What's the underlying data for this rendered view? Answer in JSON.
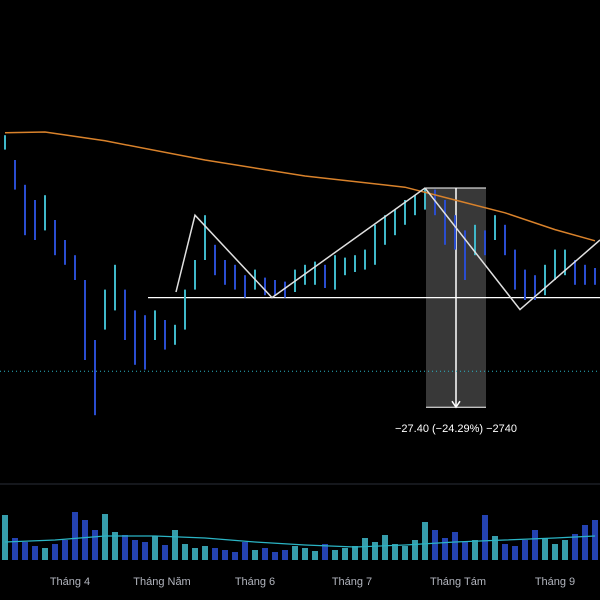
{
  "chart_data": {
    "type": "ohlc",
    "x": [
      0,
      1,
      2,
      3,
      4,
      5,
      6,
      7,
      8,
      9,
      10,
      11,
      12,
      13,
      14,
      15,
      16,
      17,
      18,
      19,
      20,
      21,
      22,
      23,
      24,
      25,
      26,
      27,
      28,
      29,
      30,
      31,
      32,
      33,
      34,
      35,
      36,
      37,
      38,
      39,
      40,
      41,
      42,
      43,
      44,
      45,
      46,
      47,
      48,
      49,
      50,
      51,
      52,
      53,
      54,
      55,
      56,
      57,
      58,
      59
    ],
    "high": [
      119.4,
      116.3,
      113.2,
      111.3,
      111.9,
      108.8,
      106.3,
      104.4,
      101.3,
      93.8,
      100.1,
      103.2,
      100.1,
      97.5,
      96.9,
      97.5,
      96.3,
      95.7,
      100.1,
      103.8,
      109.4,
      105.7,
      103.8,
      103.2,
      101.9,
      102.6,
      101.6,
      101.3,
      101.1,
      102.6,
      103.2,
      103.6,
      103.2,
      104.4,
      104.1,
      104.4,
      105.1,
      108.2,
      109.4,
      110.1,
      111.3,
      111.9,
      112.8,
      112.6,
      111.3,
      109.4,
      107.5,
      108.2,
      107.5,
      109.4,
      108.2,
      105.1,
      102.6,
      101.9,
      103.2,
      105.1,
      105.1,
      103.8,
      103.2,
      102.8
    ],
    "low": [
      117.6,
      112.6,
      106.9,
      106.3,
      107.5,
      104.4,
      103.2,
      101.3,
      91.3,
      84.4,
      95.1,
      97.5,
      93.8,
      90.7,
      90.1,
      93.8,
      92.6,
      93.2,
      95.1,
      100.1,
      103.8,
      101.9,
      100.7,
      100.1,
      99.1,
      100.1,
      99.4,
      99.4,
      99.1,
      99.8,
      100.7,
      100.7,
      100.3,
      100.1,
      101.9,
      102.3,
      102.6,
      103.2,
      105.7,
      106.9,
      108.2,
      109.4,
      110.1,
      109.4,
      105.7,
      105.1,
      101.3,
      104.4,
      104.4,
      106.3,
      104.4,
      100.1,
      98.8,
      98.8,
      99.4,
      101.3,
      101.9,
      100.7,
      100.7,
      100.7
    ],
    "xlim": [
      -0.5,
      59.5
    ],
    "ylim": [
      76.3,
      136.3
    ],
    "xticks": [
      {
        "value": 6.5,
        "label": "Tháng 4"
      },
      {
        "value": 15.7,
        "label": "Tháng Năm"
      },
      {
        "value": 25,
        "label": "Tháng 6"
      },
      {
        "value": 34.7,
        "label": "Tháng 7"
      },
      {
        "value": 45.3,
        "label": "Tháng Tám"
      },
      {
        "value": 55,
        "label": "Tháng 9"
      }
    ],
    "up_color": "#3fb8c9",
    "down_color": "#2a4dd0",
    "moving_average": {
      "x": [
        0,
        4,
        10,
        20,
        30,
        40,
        45,
        50,
        55,
        59
      ],
      "values": [
        119.7,
        119.8,
        118.7,
        116.3,
        114.3,
        112.9,
        111.3,
        109.7,
        107.6,
        106.2
      ],
      "color": "#d9822b"
    },
    "zigzag": {
      "x": [
        17.1,
        19,
        26.7,
        42,
        51.5,
        59.5
      ],
      "values": [
        99.8,
        109.4,
        99.1,
        112.8,
        97.6,
        106.3
      ],
      "color": "#e0e0e0"
    },
    "level": {
      "x_start": 14.3,
      "value": 99.1,
      "color": "#ffffff"
    },
    "dotted_level": {
      "value": 89.9,
      "color": "#2bb5c5"
    },
    "measure": {
      "x_start": 42.1,
      "x_end": 48.1,
      "from": 112.8,
      "to": 85.4,
      "label": "−27.40 (−24.29%) −2740"
    },
    "volume": {
      "values": [
        45,
        22,
        18,
        14,
        12,
        16,
        20,
        48,
        40,
        30,
        46,
        28,
        25,
        20,
        18,
        24,
        15,
        30,
        16,
        12,
        14,
        12,
        10,
        8,
        18,
        10,
        12,
        8,
        10,
        14,
        12,
        9,
        16,
        10,
        12,
        14,
        22,
        18,
        25,
        16,
        14,
        20,
        38,
        30,
        22,
        28,
        18,
        20,
        45,
        24,
        16,
        14,
        20,
        30,
        22,
        16,
        20,
        26,
        35,
        40
      ],
      "ylim": [
        0,
        60
      ],
      "ma": {
        "x": [
          0,
          5,
          10,
          15,
          20,
          25,
          30,
          35,
          40,
          45,
          50,
          55,
          59
        ],
        "values": [
          18,
          20,
          24,
          24,
          22,
          18,
          15,
          13,
          15,
          18,
          20,
          22,
          24
        ],
        "color": "#2bb5c5"
      }
    }
  }
}
